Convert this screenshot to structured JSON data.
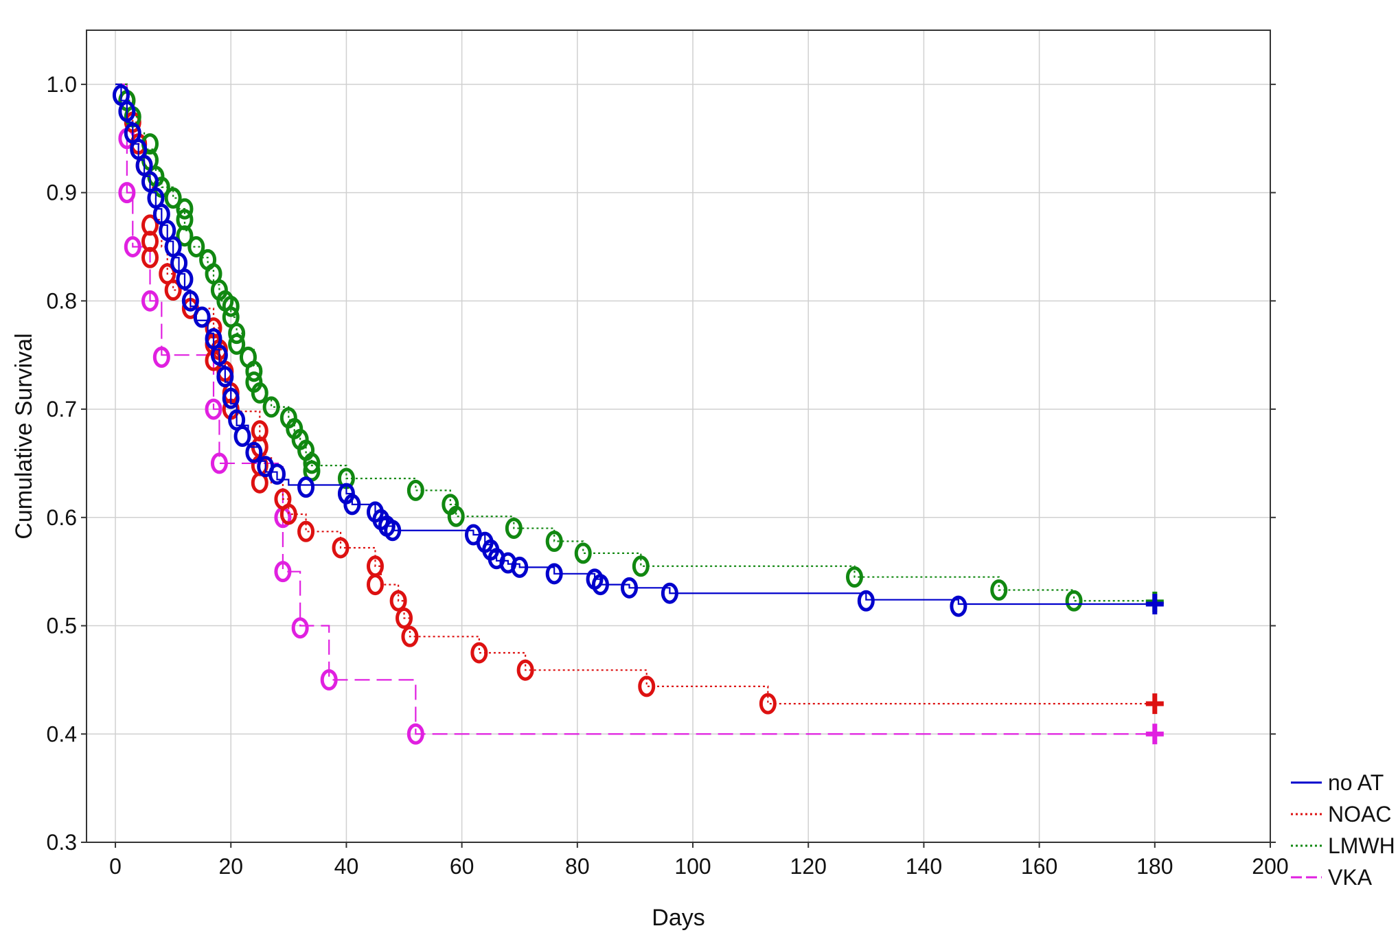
{
  "chart_data": {
    "type": "line",
    "title": "",
    "xlabel": "Days",
    "ylabel": "Cumulative Survival",
    "xlim": [
      -5,
      200
    ],
    "ylim": [
      0.3,
      1.05
    ],
    "xticks": [
      "0",
      "20",
      "40",
      "60",
      "80",
      "100",
      "120",
      "140",
      "160",
      "180",
      "200"
    ],
    "yticks": [
      "1.0",
      "0.9",
      "0.8",
      "0.7",
      "0.6",
      "0.5",
      "0.4",
      "0.3"
    ],
    "grid": true,
    "legend_position": "right-bottom",
    "series": [
      {
        "name": "no AT",
        "color": "#0000cc",
        "dash": "solid",
        "steps": [
          [
            0,
            1.0
          ],
          [
            1,
            0.985
          ],
          [
            2,
            0.965
          ],
          [
            3,
            0.945
          ],
          [
            4,
            0.93
          ],
          [
            5,
            0.915
          ],
          [
            6,
            0.9
          ],
          [
            7,
            0.885
          ],
          [
            8,
            0.87
          ],
          [
            9,
            0.855
          ],
          [
            10,
            0.84
          ],
          [
            11,
            0.825
          ],
          [
            12,
            0.81
          ],
          [
            13,
            0.795
          ],
          [
            14,
            0.782
          ],
          [
            16,
            0.77
          ],
          [
            17,
            0.755
          ],
          [
            18,
            0.74
          ],
          [
            19,
            0.725
          ],
          [
            20,
            0.705
          ],
          [
            21,
            0.685
          ],
          [
            23,
            0.665
          ],
          [
            25,
            0.652
          ],
          [
            26,
            0.642
          ],
          [
            28,
            0.635
          ],
          [
            30,
            0.63
          ],
          [
            40,
            0.622
          ],
          [
            41,
            0.612
          ],
          [
            45,
            0.605
          ],
          [
            46,
            0.598
          ],
          [
            47,
            0.592
          ],
          [
            48,
            0.588
          ],
          [
            62,
            0.584
          ],
          [
            64,
            0.575
          ],
          [
            65,
            0.568
          ],
          [
            66,
            0.56
          ],
          [
            68,
            0.557
          ],
          [
            70,
            0.554
          ],
          [
            76,
            0.548
          ],
          [
            83,
            0.543
          ],
          [
            84,
            0.538
          ],
          [
            89,
            0.535
          ],
          [
            96,
            0.53
          ],
          [
            130,
            0.524
          ],
          [
            146,
            0.52
          ],
          [
            180,
            0.52
          ]
        ],
        "censored": [
          [
            1,
            0.99
          ],
          [
            2,
            0.975
          ],
          [
            3,
            0.955
          ],
          [
            4,
            0.94
          ],
          [
            5,
            0.925
          ],
          [
            6,
            0.91
          ],
          [
            7,
            0.895
          ],
          [
            8,
            0.88
          ],
          [
            9,
            0.865
          ],
          [
            10,
            0.85
          ],
          [
            11,
            0.835
          ],
          [
            12,
            0.82
          ],
          [
            13,
            0.8
          ],
          [
            15,
            0.785
          ],
          [
            17,
            0.765
          ],
          [
            18,
            0.75
          ],
          [
            19,
            0.73
          ],
          [
            20,
            0.71
          ],
          [
            21,
            0.69
          ],
          [
            22,
            0.675
          ],
          [
            24,
            0.66
          ],
          [
            26,
            0.647
          ],
          [
            28,
            0.64
          ],
          [
            33,
            0.628
          ],
          [
            40,
            0.622
          ],
          [
            41,
            0.612
          ],
          [
            45,
            0.605
          ],
          [
            46,
            0.598
          ],
          [
            47,
            0.592
          ],
          [
            48,
            0.588
          ],
          [
            62,
            0.584
          ],
          [
            64,
            0.577
          ],
          [
            65,
            0.57
          ],
          [
            66,
            0.562
          ],
          [
            68,
            0.558
          ],
          [
            70,
            0.554
          ],
          [
            76,
            0.548
          ],
          [
            83,
            0.543
          ],
          [
            84,
            0.538
          ],
          [
            89,
            0.535
          ],
          [
            96,
            0.53
          ],
          [
            130,
            0.523
          ],
          [
            146,
            0.518
          ]
        ],
        "end_marker": [
          180,
          0.52
        ]
      },
      {
        "name": "NOAC",
        "color": "#dd1111",
        "dash": "dotted",
        "steps": [
          [
            0,
            1.0
          ],
          [
            2,
            0.985
          ],
          [
            3,
            0.965
          ],
          [
            4,
            0.945
          ],
          [
            5,
            0.925
          ],
          [
            6,
            0.905
          ],
          [
            7,
            0.875
          ],
          [
            8,
            0.85
          ],
          [
            9,
            0.825
          ],
          [
            10,
            0.81
          ],
          [
            13,
            0.793
          ],
          [
            17,
            0.775
          ],
          [
            18,
            0.755
          ],
          [
            19,
            0.74
          ],
          [
            20,
            0.715
          ],
          [
            21,
            0.698
          ],
          [
            25,
            0.675
          ],
          [
            26,
            0.655
          ],
          [
            27,
            0.632
          ],
          [
            29,
            0.617
          ],
          [
            30,
            0.603
          ],
          [
            33,
            0.587
          ],
          [
            39,
            0.572
          ],
          [
            45,
            0.555
          ],
          [
            46,
            0.538
          ],
          [
            49,
            0.523
          ],
          [
            50,
            0.507
          ],
          [
            51,
            0.49
          ],
          [
            63,
            0.475
          ],
          [
            71,
            0.459
          ],
          [
            92,
            0.444
          ],
          [
            113,
            0.428
          ],
          [
            180,
            0.428
          ]
        ],
        "censored": [
          [
            2,
            0.985
          ],
          [
            3,
            0.965
          ],
          [
            4,
            0.945
          ],
          [
            5,
            0.925
          ],
          [
            6,
            0.87
          ],
          [
            6,
            0.855
          ],
          [
            6,
            0.84
          ],
          [
            9,
            0.825
          ],
          [
            10,
            0.81
          ],
          [
            13,
            0.793
          ],
          [
            17,
            0.775
          ],
          [
            17,
            0.76
          ],
          [
            17,
            0.745
          ],
          [
            18,
            0.755
          ],
          [
            19,
            0.735
          ],
          [
            20,
            0.715
          ],
          [
            20,
            0.7
          ],
          [
            25,
            0.68
          ],
          [
            25,
            0.665
          ],
          [
            25,
            0.648
          ],
          [
            25,
            0.632
          ],
          [
            29,
            0.617
          ],
          [
            30,
            0.603
          ],
          [
            33,
            0.587
          ],
          [
            39,
            0.572
          ],
          [
            45,
            0.555
          ],
          [
            45,
            0.538
          ],
          [
            49,
            0.523
          ],
          [
            50,
            0.507
          ],
          [
            51,
            0.49
          ],
          [
            63,
            0.475
          ],
          [
            71,
            0.459
          ],
          [
            92,
            0.444
          ],
          [
            113,
            0.428
          ]
        ],
        "end_marker": [
          180,
          0.428
        ]
      },
      {
        "name": "LMWH",
        "color": "#118811",
        "dash": "dotted",
        "steps": [
          [
            0,
            1.0
          ],
          [
            2,
            0.985
          ],
          [
            3,
            0.97
          ],
          [
            4,
            0.955
          ],
          [
            5,
            0.94
          ],
          [
            7,
            0.92
          ],
          [
            8,
            0.905
          ],
          [
            10,
            0.895
          ],
          [
            11,
            0.885
          ],
          [
            12,
            0.865
          ],
          [
            13,
            0.85
          ],
          [
            15,
            0.84
          ],
          [
            16,
            0.828
          ],
          [
            17,
            0.815
          ],
          [
            18,
            0.8
          ],
          [
            20,
            0.785
          ],
          [
            21,
            0.77
          ],
          [
            22,
            0.755
          ],
          [
            24,
            0.74
          ],
          [
            25,
            0.722
          ],
          [
            26,
            0.71
          ],
          [
            27,
            0.702
          ],
          [
            30,
            0.69
          ],
          [
            31,
            0.68
          ],
          [
            32,
            0.67
          ],
          [
            33,
            0.66
          ],
          [
            34,
            0.648
          ],
          [
            40,
            0.636
          ],
          [
            52,
            0.625
          ],
          [
            58,
            0.612
          ],
          [
            59,
            0.601
          ],
          [
            69,
            0.59
          ],
          [
            76,
            0.578
          ],
          [
            81,
            0.567
          ],
          [
            91,
            0.555
          ],
          [
            128,
            0.545
          ],
          [
            153,
            0.533
          ],
          [
            166,
            0.523
          ],
          [
            180,
            0.523
          ]
        ],
        "censored": [
          [
            2,
            0.985
          ],
          [
            3,
            0.97
          ],
          [
            6,
            0.945
          ],
          [
            6,
            0.93
          ],
          [
            7,
            0.915
          ],
          [
            8,
            0.905
          ],
          [
            10,
            0.895
          ],
          [
            12,
            0.885
          ],
          [
            12,
            0.875
          ],
          [
            12,
            0.86
          ],
          [
            14,
            0.85
          ],
          [
            16,
            0.838
          ],
          [
            17,
            0.825
          ],
          [
            18,
            0.81
          ],
          [
            19,
            0.8
          ],
          [
            20,
            0.795
          ],
          [
            20,
            0.785
          ],
          [
            21,
            0.77
          ],
          [
            21,
            0.76
          ],
          [
            23,
            0.748
          ],
          [
            24,
            0.735
          ],
          [
            24,
            0.725
          ],
          [
            25,
            0.715
          ],
          [
            27,
            0.702
          ],
          [
            30,
            0.692
          ],
          [
            31,
            0.682
          ],
          [
            32,
            0.672
          ],
          [
            33,
            0.662
          ],
          [
            34,
            0.65
          ],
          [
            34,
            0.643
          ],
          [
            40,
            0.636
          ],
          [
            52,
            0.625
          ],
          [
            58,
            0.612
          ],
          [
            59,
            0.601
          ],
          [
            69,
            0.59
          ],
          [
            76,
            0.578
          ],
          [
            81,
            0.567
          ],
          [
            91,
            0.555
          ],
          [
            128,
            0.545
          ],
          [
            153,
            0.533
          ],
          [
            166,
            0.523
          ]
        ],
        "end_marker": [
          180,
          0.522
        ]
      },
      {
        "name": "VKA",
        "color": "#e020e0",
        "dash": "dashed",
        "steps": [
          [
            0,
            1.0
          ],
          [
            2,
            0.95
          ],
          [
            2,
            0.9
          ],
          [
            3,
            0.85
          ],
          [
            6,
            0.8
          ],
          [
            8,
            0.75
          ],
          [
            17,
            0.7
          ],
          [
            18,
            0.65
          ],
          [
            29,
            0.6
          ],
          [
            29,
            0.55
          ],
          [
            32,
            0.5
          ],
          [
            37,
            0.45
          ],
          [
            52,
            0.4
          ],
          [
            180,
            0.4
          ]
        ],
        "censored": [
          [
            2,
            0.95
          ],
          [
            2,
            0.9
          ],
          [
            3,
            0.85
          ],
          [
            6,
            0.8
          ],
          [
            8,
            0.748
          ],
          [
            17,
            0.7
          ],
          [
            18,
            0.65
          ],
          [
            29,
            0.6
          ],
          [
            29,
            0.55
          ],
          [
            32,
            0.498
          ],
          [
            37,
            0.45
          ],
          [
            52,
            0.4
          ]
        ],
        "end_marker": [
          180,
          0.4
        ]
      }
    ]
  }
}
